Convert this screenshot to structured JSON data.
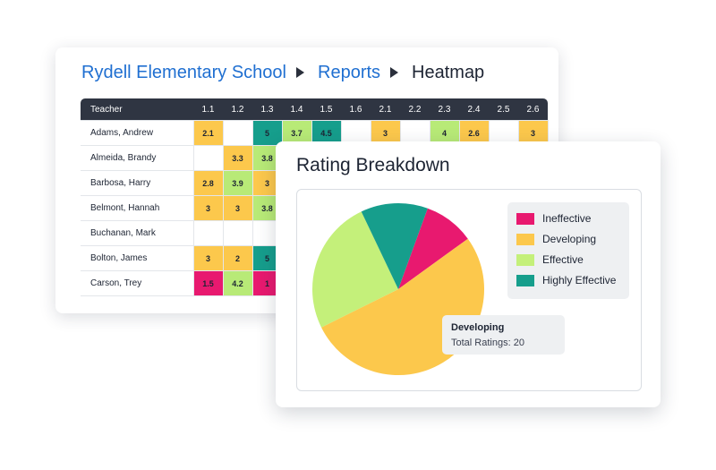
{
  "breadcrumb": {
    "school": "Rydell Elementary School",
    "reports": "Reports",
    "current": "Heatmap"
  },
  "heatmap": {
    "teacher_header": "Teacher",
    "columns": [
      "1.1",
      "1.2",
      "1.3",
      "1.4",
      "1.5",
      "1.6",
      "2.1",
      "2.2",
      "2.3",
      "2.4",
      "2.5",
      "2.6"
    ],
    "rows": [
      {
        "teacher": "Adams, Andrew",
        "cells": [
          [
            "2.1",
            "y"
          ],
          [
            "",
            ""
          ],
          [
            "5",
            "t"
          ],
          [
            "3.7",
            "g"
          ],
          [
            "4.5",
            "t"
          ],
          [
            "",
            ""
          ],
          [
            "3",
            "y"
          ],
          [
            "",
            ""
          ],
          [
            "4",
            "g"
          ],
          [
            "2.6",
            "y"
          ],
          [
            "",
            ""
          ],
          [
            "3",
            "y"
          ]
        ]
      },
      {
        "teacher": "Almeida, Brandy",
        "cells": [
          [
            "",
            ""
          ],
          [
            "3.3",
            "y"
          ],
          [
            "3.8",
            "g"
          ]
        ]
      },
      {
        "teacher": "Barbosa, Harry",
        "cells": [
          [
            "2.8",
            "y"
          ],
          [
            "3.9",
            "g"
          ],
          [
            "3",
            "y"
          ]
        ]
      },
      {
        "teacher": "Belmont, Hannah",
        "cells": [
          [
            "3",
            "y"
          ],
          [
            "3",
            "y"
          ],
          [
            "3.8",
            "g"
          ]
        ]
      },
      {
        "teacher": "Buchanan, Mark",
        "cells": [
          [
            "",
            ""
          ],
          [
            "",
            ""
          ],
          [
            "",
            ""
          ]
        ]
      },
      {
        "teacher": "Bolton, James",
        "cells": [
          [
            "3",
            "y"
          ],
          [
            "2",
            "y"
          ],
          [
            "5",
            "t"
          ]
        ]
      },
      {
        "teacher": "Carson, Trey",
        "cells": [
          [
            "1.5",
            "p"
          ],
          [
            "4.2",
            "g"
          ],
          [
            "1",
            "p"
          ]
        ]
      }
    ]
  },
  "breakdown": {
    "title": "Rating Breakdown",
    "legend": [
      {
        "label": "Ineffective",
        "color": "#e8196f"
      },
      {
        "label": "Developing",
        "color": "#fcc84c"
      },
      {
        "label": "Effective",
        "color": "#c4f07a"
      },
      {
        "label": "Highly Effective",
        "color": "#169e8c"
      }
    ],
    "tooltip": {
      "title": "Developing",
      "value": "Total Ratings: 20"
    }
  },
  "chart_data": {
    "type": "pie",
    "labels": [
      "Ineffective",
      "Developing",
      "Effective",
      "Highly Effective"
    ],
    "values": [
      3.6,
      20,
      9.6,
      4.8
    ],
    "colors": [
      "#e8196f",
      "#fcc84c",
      "#c4f07a",
      "#169e8c"
    ],
    "title": "Rating Breakdown",
    "legend": "right"
  }
}
